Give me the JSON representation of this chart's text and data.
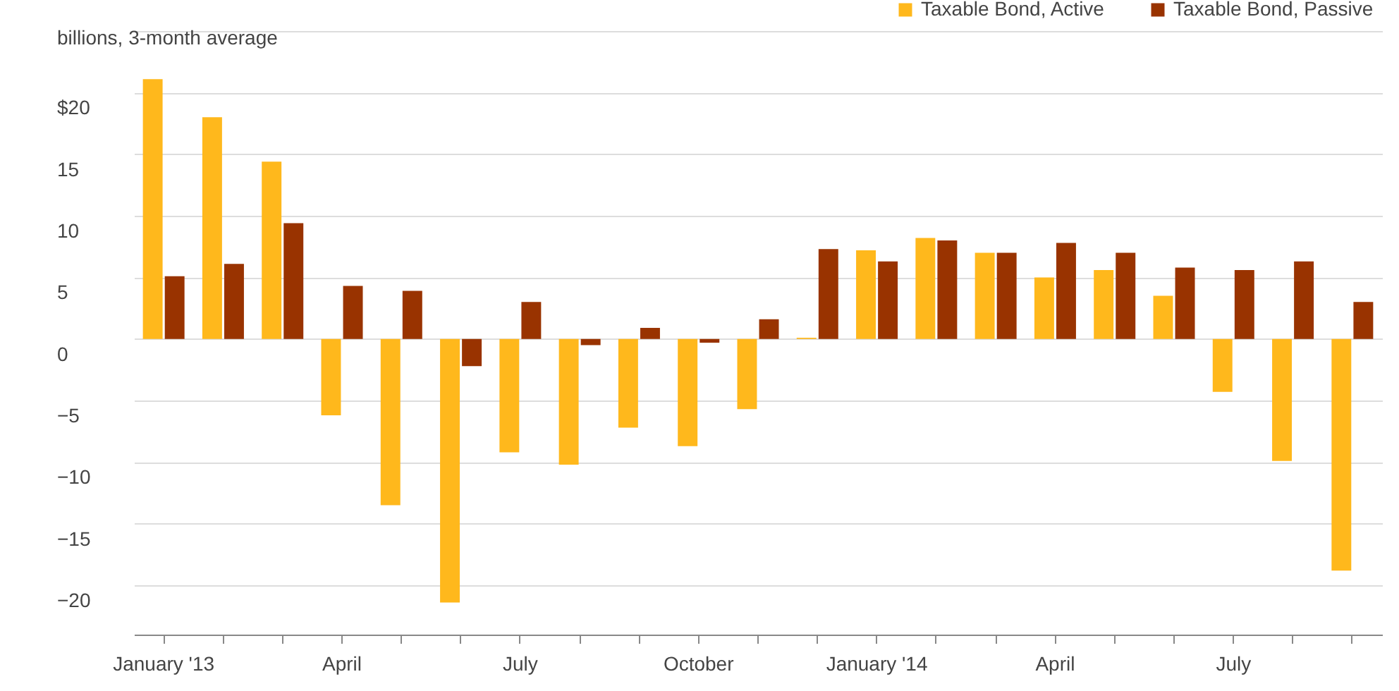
{
  "chart_data": {
    "type": "bar",
    "ylabel": "billions, 3-month average",
    "categories": [
      "January '13",
      null,
      null,
      "April",
      null,
      null,
      "July",
      null,
      null,
      "October",
      null,
      null,
      "January '14",
      null,
      null,
      "April",
      null,
      null,
      "July",
      null,
      null
    ],
    "series": [
      {
        "name": "Taxable Bond, Active",
        "color": "#ffb81c",
        "values": [
          21.1,
          18.0,
          14.4,
          -6.2,
          -13.5,
          -21.4,
          -9.2,
          -10.2,
          -7.2,
          -8.7,
          -5.7,
          0.1,
          7.2,
          8.2,
          7.0,
          5.0,
          5.6,
          3.5,
          -4.3,
          -9.9,
          -18.8
        ]
      },
      {
        "name": "Taxable Bond, Passive",
        "color": "#993300",
        "values": [
          5.1,
          6.1,
          9.4,
          4.3,
          3.9,
          -2.2,
          3.0,
          -0.5,
          0.9,
          -0.3,
          1.6,
          7.3,
          6.3,
          8.0,
          7.0,
          7.8,
          7.0,
          5.8,
          5.6,
          6.3,
          3.0
        ]
      }
    ],
    "ylim": [
      -24,
      25
    ],
    "yticks": [
      {
        "value": 25,
        "label": null
      },
      {
        "value": 20,
        "label": "$20"
      },
      15,
      10,
      5,
      0,
      -5,
      -10,
      -15,
      -20
    ],
    "grid": "y",
    "legend": "top right"
  }
}
